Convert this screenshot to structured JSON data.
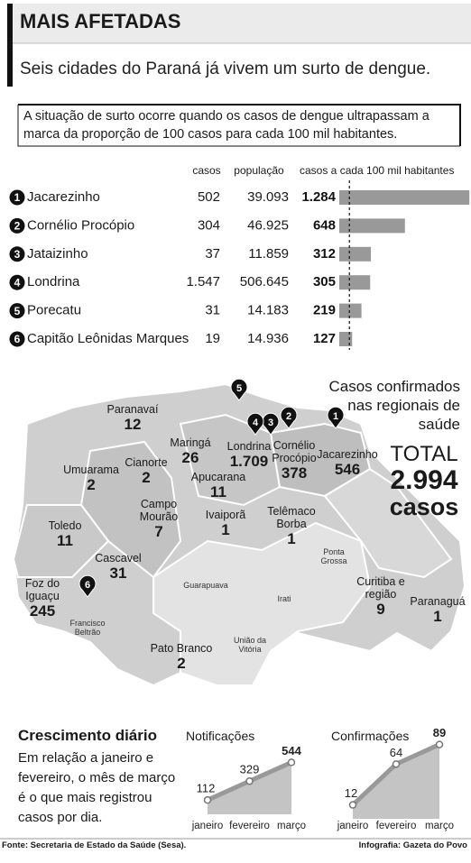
{
  "header": {
    "title": "MAIS AFETADAS",
    "subtitle": "Seis cidades do Paraná já vivem um surto de dengue.",
    "note": "A situação de surto ocorre quando os casos de dengue ultrapassam a marca da proporção de 100 casos para cada 100 mil habitantes."
  },
  "chart_data": [
    {
      "type": "bar",
      "orientation": "horizontal",
      "columns": [
        "casos",
        "população",
        "casos a cada 100 mil habitantes"
      ],
      "ranks": [
        1,
        2,
        3,
        4,
        5,
        6
      ],
      "categories": [
        "Jacarezinho",
        "Cornélio Procópio",
        "Jataizinho",
        "Londrina",
        "Porecatu",
        "Capitão Leônidas Marques"
      ],
      "cases": [
        "502",
        "304",
        "37",
        "1.547",
        "31",
        "19"
      ],
      "population": [
        "39.093",
        "46.925",
        "11.859",
        "506.645",
        "14.183",
        "14.936"
      ],
      "values": [
        1284,
        648,
        312,
        305,
        219,
        127
      ],
      "value_labels": [
        "1.284",
        "648",
        "312",
        "305",
        "219",
        "127"
      ],
      "xlim": [
        0,
        1300
      ],
      "threshold": 100,
      "color": "#999999"
    },
    {
      "type": "area",
      "title": "Notificações",
      "categories": [
        "janeiro",
        "fevereiro",
        "março"
      ],
      "values": [
        112,
        329,
        544
      ],
      "ylim": [
        0,
        600
      ],
      "color": "#999999"
    },
    {
      "type": "area",
      "title": "Confirmações",
      "categories": [
        "janeiro",
        "fevereiro",
        "março"
      ],
      "values": [
        12,
        64,
        89
      ],
      "ylim": [
        0,
        100
      ],
      "color": "#999999"
    }
  ],
  "map": {
    "title": "Casos confirmados nas regionais de saúde",
    "total_label": "TOTAL",
    "total": "2.994",
    "total_unit": "casos",
    "regions": [
      {
        "name": "Paranavaí",
        "cases": "12"
      },
      {
        "name": "Umuarama",
        "cases": "2"
      },
      {
        "name": "Cianorte",
        "cases": "2"
      },
      {
        "name": "Maringá",
        "cases": "26"
      },
      {
        "name": "Londrina",
        "cases": "1.709"
      },
      {
        "name": "Cornélio Procópio",
        "cases": "378"
      },
      {
        "name": "Jacarezinho",
        "cases": "546"
      },
      {
        "name": "Apucarana",
        "cases": "11"
      },
      {
        "name": "Campo Mourão",
        "cases": "7"
      },
      {
        "name": "Ivaiporã",
        "cases": "1"
      },
      {
        "name": "Telêmaco Borba",
        "cases": "1"
      },
      {
        "name": "Toledo",
        "cases": "11"
      },
      {
        "name": "Cascavel",
        "cases": "31"
      },
      {
        "name": "Foz do Iguaçu",
        "cases": "245"
      },
      {
        "name": "Curitiba e região",
        "cases": "9"
      },
      {
        "name": "Paranaguá",
        "cases": "1"
      },
      {
        "name": "Pato Branco",
        "cases": "2"
      }
    ],
    "other_places": [
      "Guarapuava",
      "Irati",
      "Ponta Grossa",
      "Francisco Beltrão",
      "União da Vitória"
    ]
  },
  "growth": {
    "title": "Crescimento diário",
    "text": "Em relação a janeiro e fevereiro, o mês de março é o que mais registrou casos por dia."
  },
  "footer": {
    "source": "Fonte: Secretaria de Estado da Saúde (Sesa).",
    "credit": "Infografia: Gazeta do Povo"
  }
}
